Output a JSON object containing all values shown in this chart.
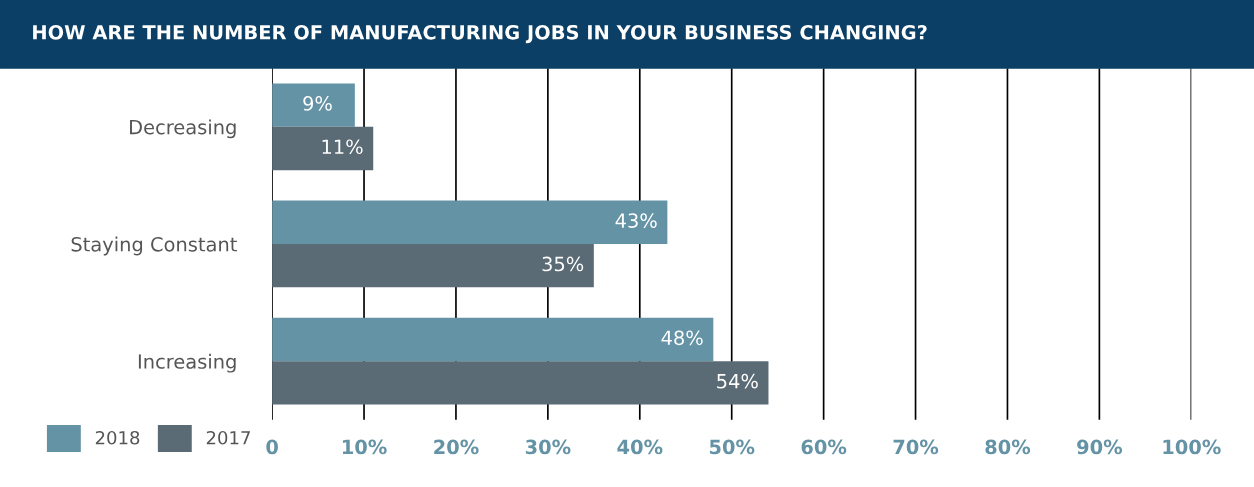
{
  "chart_data": {
    "type": "bar",
    "orientation": "horizontal",
    "title": "HOW ARE THE NUMBER OF MANUFACTURING JOBS IN YOUR BUSINESS CHANGING?",
    "categories": [
      "Decreasing",
      "Staying Constant",
      "Increasing"
    ],
    "series": [
      {
        "name": "2018",
        "color": "#6593a6",
        "values": [
          9,
          43,
          48
        ],
        "value_labels": [
          "9%",
          "43%",
          "48%"
        ]
      },
      {
        "name": "2017",
        "color": "#5b6b75",
        "values": [
          11,
          35,
          54
        ],
        "value_labels": [
          "11%",
          "35%",
          "54%"
        ]
      }
    ],
    "xlim": [
      0,
      100
    ],
    "xticks": [
      0,
      {
        "value": 10,
        "label": "10%"
      },
      {
        "value": 20,
        "label": "20%"
      },
      {
        "value": 30,
        "label": "30%"
      },
      {
        "value": 40,
        "label": "40%"
      },
      {
        "value": 50,
        "label": "50%"
      },
      {
        "value": 60,
        "label": "60%"
      },
      {
        "value": 70,
        "label": "70%"
      },
      {
        "value": 80,
        "label": "80%"
      },
      {
        "value": 90,
        "label": "90%"
      },
      {
        "value": 100,
        "label": "100%"
      }
    ],
    "grid": "x",
    "legend": "bottom left"
  }
}
